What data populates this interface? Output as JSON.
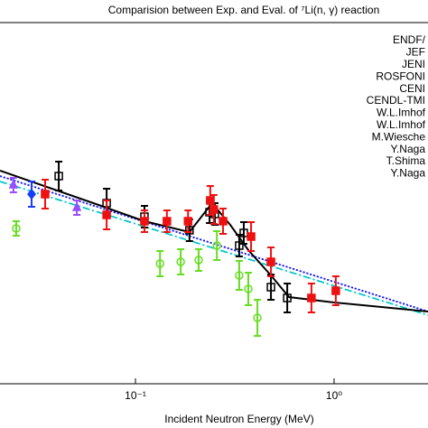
{
  "chart_data": {
    "type": "scatter",
    "title": "Comparision between Exp. and Eval. of ⁷Li(n, γ) reaction",
    "x_label": "Incident Neutron Energy (MeV)",
    "log_x": true,
    "xlim": [
      0.0208,
      2.97
    ],
    "xticks": [
      {
        "value": 0.1,
        "label": "10⁻¹"
      },
      {
        "value": 1,
        "label": "10⁰"
      }
    ],
    "ylim": [
      0,
      100
    ],
    "series": [
      {
        "name": "ENDF/",
        "color": "#1a1aff",
        "style": "dotted",
        "x": [
          0.0208,
          2.97
        ],
        "values": [
          57.5,
          20
        ]
      },
      {
        "name": "JEF",
        "color": "#00c8c8",
        "style": "dashdot",
        "x": [
          0.0208,
          2.97
        ],
        "values": [
          56,
          19
        ]
      },
      {
        "name": "JENI",
        "color": "#1a1aff",
        "style": "dotted",
        "x": [
          0.0208,
          2.97
        ],
        "values": [
          57.5,
          20
        ]
      },
      {
        "name": "ROSFONI",
        "color": "#1a1aff",
        "style": "dotted",
        "x": [
          0.0208,
          2.97
        ],
        "values": [
          57.5,
          20
        ]
      },
      {
        "name": "CENI",
        "color": "#00c8c8",
        "style": "dashdot",
        "x": [
          0.0208,
          2.97
        ],
        "values": [
          56,
          19
        ]
      },
      {
        "name": "CENDL-TMI",
        "color": "#000000",
        "style": "solid",
        "x": [
          0.0208,
          0.0693,
          0.111,
          0.187,
          0.243,
          0.3,
          0.37,
          0.481,
          0.593,
          1.0,
          2.97
        ],
        "values": [
          59,
          49,
          45,
          42,
          50,
          44,
          37,
          30,
          24,
          22.5,
          20
        ]
      },
      {
        "name": "W.L.Imhof",
        "color": "#1a3cff",
        "style": "diamond",
        "x": [
          0.03
        ],
        "values": [
          52.5
        ],
        "errors": [
          3.5
        ]
      },
      {
        "name": "W.L.Imhof",
        "color": "#9a4dff",
        "style": "triangle",
        "x": [
          0.0507
        ],
        "values": [
          48.75
        ],
        "errors": [
          2
        ]
      },
      {
        "name": "M.Wiesche",
        "color": "#66dd22",
        "style": "circle",
        "x": [
          0.0251,
          0.133,
          0.169,
          0.208,
          0.257,
          0.333,
          0.37,
          0.411
        ],
        "values": [
          43,
          33.25,
          33.75,
          34.25,
          38.25,
          30,
          26.25,
          18.25
        ],
        "errors": [
          2,
          3.5,
          3.5,
          3,
          4,
          4,
          4.5,
          5
        ]
      },
      {
        "name": "Y.Naga",
        "color": "#000000",
        "style": "square-open",
        "x": [
          0.0411,
          0.0716,
          0.111,
          0.187,
          0.236,
          0.251,
          0.333,
          0.351,
          0.481,
          0.581
        ],
        "values": [
          57.5,
          50,
          46.25,
          42.5,
          47.5,
          47,
          38.25,
          41.75,
          26.75,
          23.75
        ],
        "errors": [
          4,
          4,
          3,
          3,
          3,
          3,
          3,
          3,
          3.5,
          4
        ]
      },
      {
        "name": "T.Shima",
        "color": "#9a4dff",
        "style": "triangle",
        "x": [
          0.0243
        ],
        "values": [
          55
        ],
        "errors": [
          2
        ]
      },
      {
        "name": "Y.Naga",
        "color": "#ee1111",
        "style": "square",
        "x": [
          0.0351,
          0.0716,
          0.111,
          0.144,
          0.184,
          0.238,
          0.248,
          0.276,
          0.382,
          0.481,
          0.769,
          1.02
        ],
        "values": [
          52.5,
          46.75,
          45,
          45,
          45,
          50.75,
          48.25,
          45,
          40.75,
          33.75,
          23.75,
          25.75
        ],
        "errors": [
          4,
          4,
          3,
          3,
          3,
          4,
          4,
          3.5,
          4,
          4,
          4,
          4
        ]
      }
    ]
  }
}
